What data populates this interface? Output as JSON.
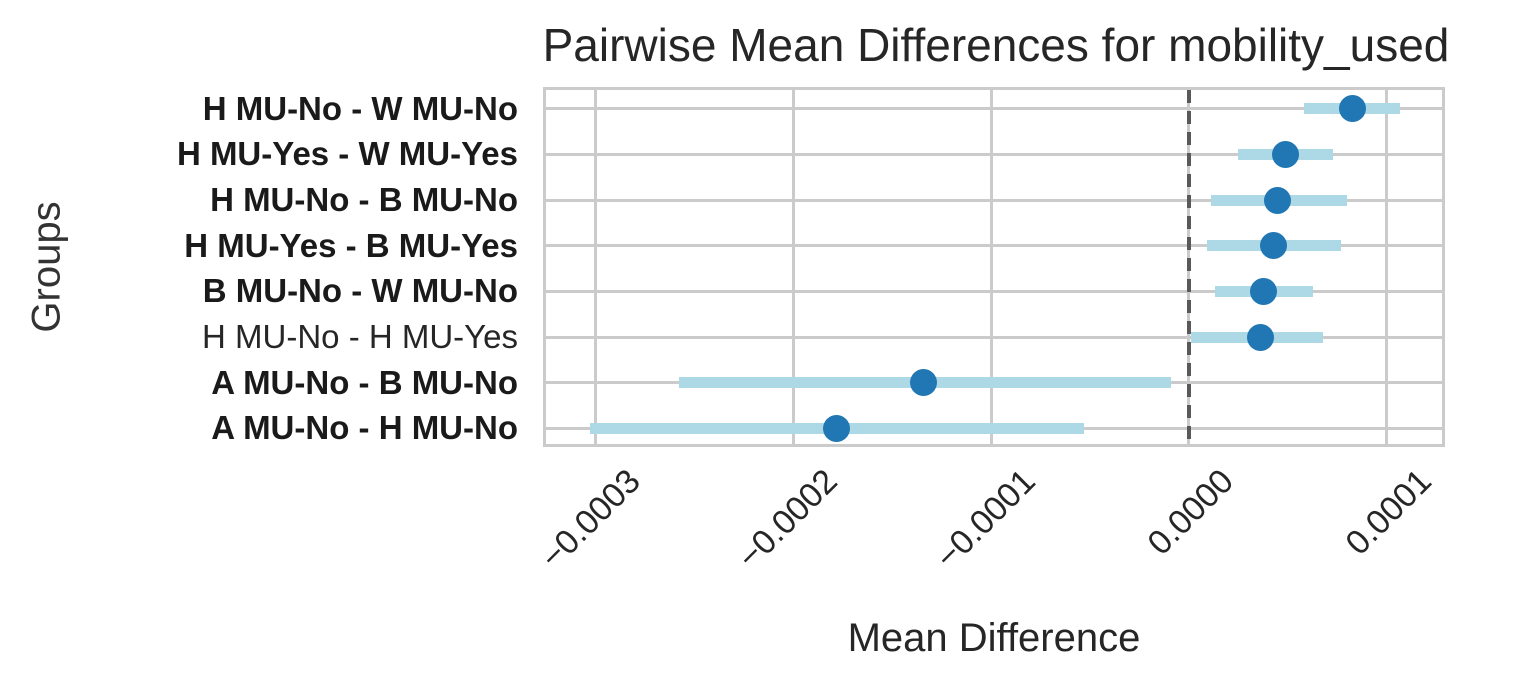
{
  "chart_data": {
    "type": "scatter",
    "subtype": "forest-plot-with-confidence-intervals",
    "title": "Pairwise Mean Differences for mobility_used",
    "xlabel": "Mean Difference",
    "ylabel": "Groups",
    "orientation": "horizontal",
    "grid": true,
    "legend": "none",
    "reference_line_x": 0,
    "xlim": [
      -0.000325,
      0.000128
    ],
    "xticks": [
      -0.0003,
      -0.0002,
      -0.0001,
      0.0,
      0.0001
    ],
    "xtick_labels": [
      "−0.0003",
      "−0.0002",
      "−0.0001",
      "0.0000",
      "0.0001"
    ],
    "categories": [
      "H MU-No - W MU-No",
      "H MU-Yes - W MU-Yes",
      "H MU-No - B MU-No",
      "H MU-Yes - B MU-Yes",
      "B MU-No - W MU-No",
      "H MU-No - H MU-Yes",
      "A MU-No - B MU-No",
      "A MU-No - H MU-No"
    ],
    "rows": [
      {
        "group": "H MU-No - W MU-No",
        "mean": 8.3e-05,
        "ci_low": 5.8e-05,
        "ci_high": 0.000107,
        "bold": true
      },
      {
        "group": "H MU-Yes - W MU-Yes",
        "mean": 4.9e-05,
        "ci_low": 2.5e-05,
        "ci_high": 7.3e-05,
        "bold": true
      },
      {
        "group": "H MU-No - B MU-No",
        "mean": 4.5e-05,
        "ci_low": 1.1e-05,
        "ci_high": 8e-05,
        "bold": true
      },
      {
        "group": "H MU-Yes - B MU-Yes",
        "mean": 4.3e-05,
        "ci_low": 9e-06,
        "ci_high": 7.7e-05,
        "bold": true
      },
      {
        "group": "B MU-No - W MU-No",
        "mean": 3.8e-05,
        "ci_low": 1.3e-05,
        "ci_high": 6.3e-05,
        "bold": true
      },
      {
        "group": "H MU-No - H MU-Yes",
        "mean": 3.6e-05,
        "ci_low": 1e-06,
        "ci_high": 6.8e-05,
        "bold": false
      },
      {
        "group": "A MU-No - B MU-No",
        "mean": -0.000134,
        "ci_low": -0.000258,
        "ci_high": -9e-06,
        "bold": true
      },
      {
        "group": "A MU-No - H MU-No",
        "mean": -0.000178,
        "ci_low": -0.000303,
        "ci_high": -5.3e-05,
        "bold": true
      }
    ],
    "colors": {
      "dot": "#2077b4",
      "ci_bar": "#add8e6",
      "reference_line": "#595959",
      "grid": "#cbcbcb",
      "text": "#262626"
    }
  }
}
